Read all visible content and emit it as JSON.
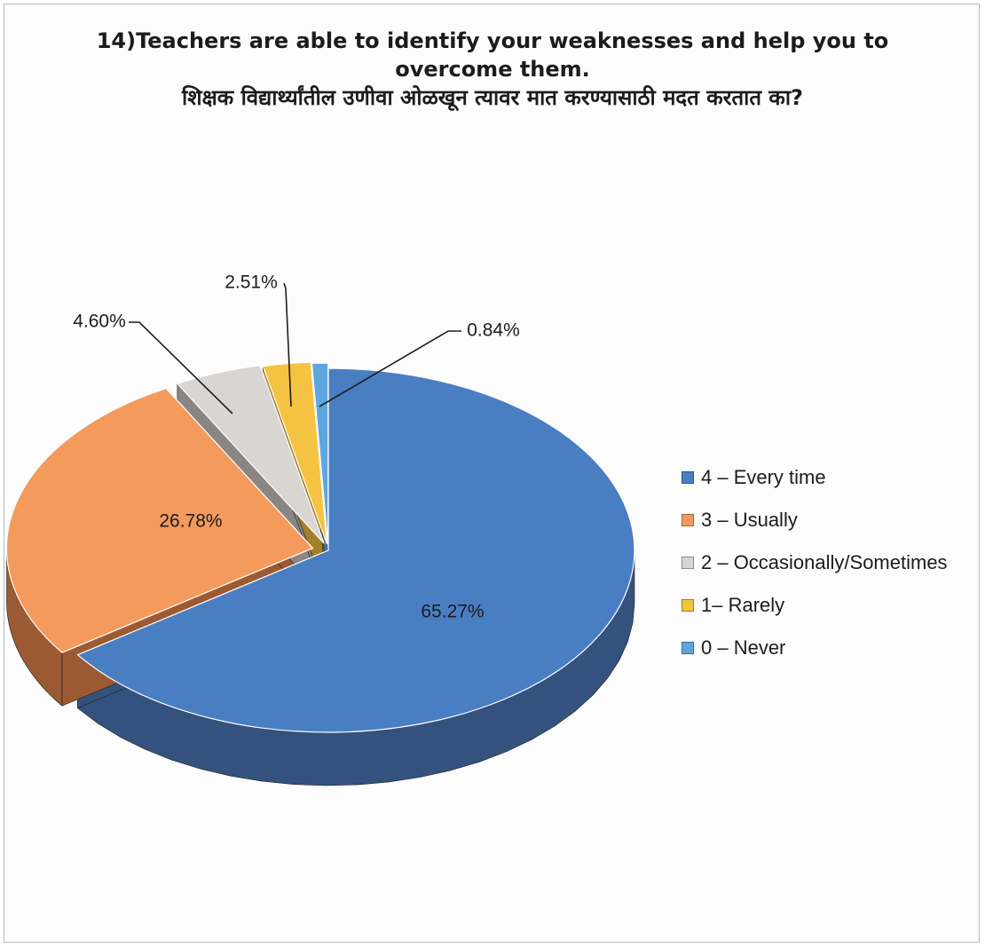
{
  "title_en": "14)Teachers are able to identify your weaknesses and help you to overcome them.",
  "title_mr": "शिक्षक विद्यार्थ्यांतील उणीवा ओळखून त्यावर मात करण्यासाठी मदत करतात का?",
  "chart_data": {
    "type": "pie",
    "style": "3d-exploded",
    "legend_position": "right",
    "categories": [
      "4 – Every time",
      "3 – Usually",
      "2 – Occasionally/Sometimes",
      "1– Rarely",
      "0 – Never"
    ],
    "values": [
      65.27,
      26.78,
      4.6,
      2.51,
      0.84
    ],
    "data_labels": [
      "65.27%",
      "26.78%",
      "4.60%",
      "2.51%",
      "0.84%"
    ],
    "colors": [
      "#4a7ec3",
      "#f39a5c",
      "#d9d5d2",
      "#f5c342",
      "#5ea6dd"
    ],
    "side_colors": [
      "#34527d",
      "#9c5a33",
      "#8a8684",
      "#a3802a",
      "#3b6f98"
    ]
  }
}
